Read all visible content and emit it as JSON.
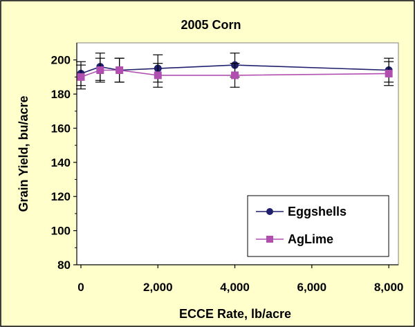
{
  "chart_data": {
    "type": "line",
    "title": "2005 Corn",
    "xlabel": "ECCE Rate, lb/acre",
    "ylabel": "Grain Yield, bu/acre",
    "xlim": [
      0,
      8250
    ],
    "ylim": [
      80,
      210
    ],
    "x_ticks": [
      0,
      2000,
      4000,
      6000,
      8000
    ],
    "x_tick_labels": [
      "0",
      "2,000",
      "4,000",
      "6,000",
      "8,000"
    ],
    "y_ticks": [
      80,
      100,
      120,
      140,
      160,
      180,
      200
    ],
    "y_tick_labels": [
      "80",
      "100",
      "120",
      "140",
      "160",
      "180",
      "200"
    ],
    "grid": false,
    "legend_position": "bottom-right",
    "series": [
      {
        "name": "Eggshells",
        "color": "#1f1f6e",
        "marker": "circle",
        "x": [
          0,
          500,
          1000,
          2000,
          4000,
          8000
        ],
        "y": [
          192,
          196,
          194,
          195,
          197,
          194
        ],
        "error": [
          7,
          8,
          7,
          8,
          7,
          7
        ]
      },
      {
        "name": "AgLime",
        "color": "#b14fb0",
        "marker": "square",
        "x": [
          0,
          500,
          1000,
          2000,
          4000,
          8000
        ],
        "y": [
          190,
          194,
          194,
          191,
          191,
          192
        ],
        "error": [
          7,
          7,
          7,
          7,
          7,
          7
        ]
      }
    ],
    "colors": {
      "frame_background": "#ffffcc",
      "plot_background": "#ffffff"
    }
  }
}
